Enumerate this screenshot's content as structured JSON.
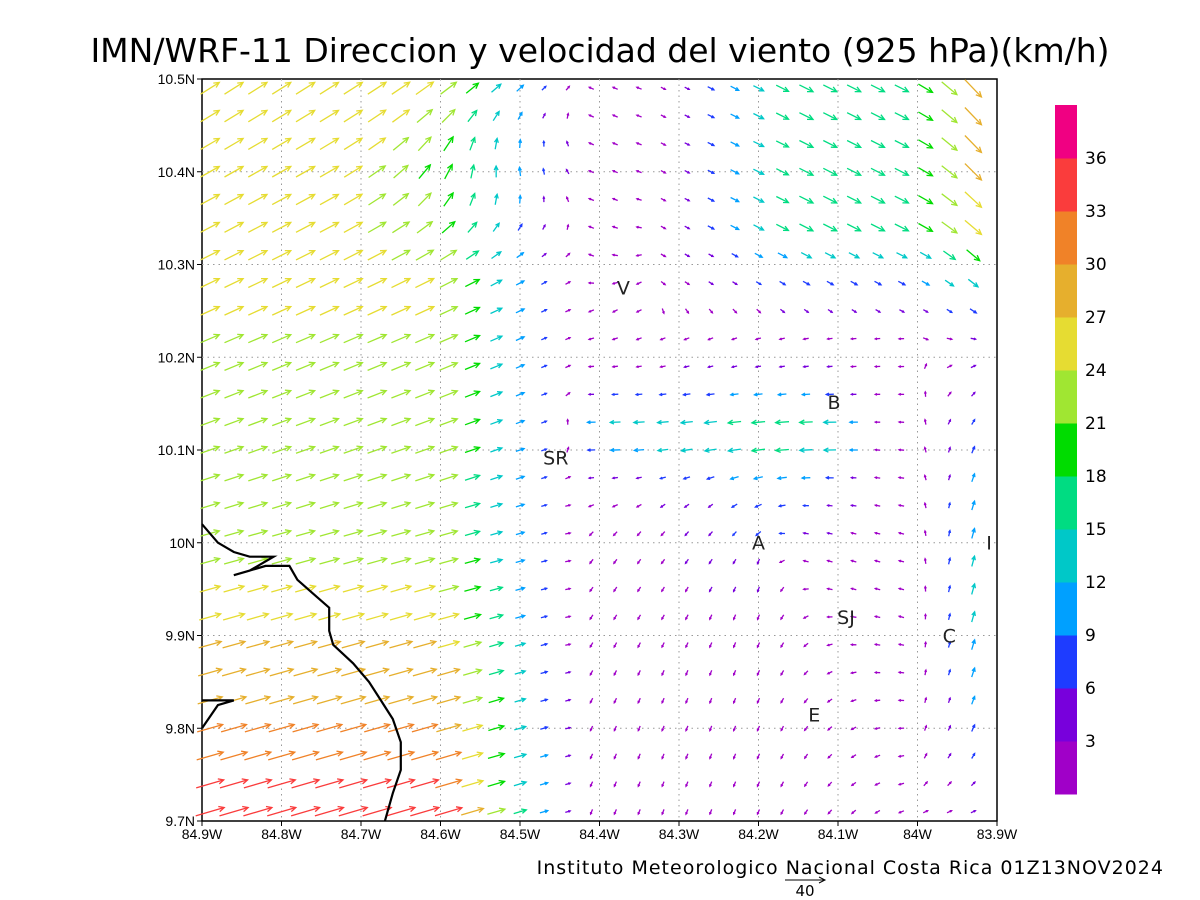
{
  "title": "IMN/WRF-11 Direccion y velocidad del viento (925 hPa)(km/h)",
  "footer": "Instituto Meteorologico Nacional Costa Rica 01Z13NOV2024",
  "reference_vector": {
    "value": "40"
  },
  "map": {
    "lon_labels": [
      "84.9W",
      "84.8W",
      "84.7W",
      "84.6W",
      "84.5W",
      "84.4W",
      "84.3W",
      "84.2W",
      "84.1W",
      "84W",
      "83.9W"
    ],
    "lat_labels": [
      "10.5N",
      "10.4N",
      "10.3N",
      "10.2N",
      "10.1N",
      "10N",
      "9.9N",
      "9.8N",
      "9.7N"
    ],
    "lon_range": [
      -84.9,
      -83.9
    ],
    "lat_range": [
      9.7,
      10.5
    ],
    "coastline": [
      [
        -84.9,
        10.02
      ],
      [
        -84.88,
        10.0
      ],
      [
        -84.86,
        9.99
      ],
      [
        -84.84,
        9.985
      ],
      [
        -84.81,
        9.985
      ],
      [
        -84.84,
        9.97
      ],
      [
        -84.86,
        9.965
      ],
      [
        -84.82,
        9.975
      ],
      [
        -84.79,
        9.975
      ],
      [
        -84.78,
        9.96
      ],
      [
        -84.76,
        9.945
      ],
      [
        -84.74,
        9.93
      ],
      [
        -84.74,
        9.905
      ],
      [
        -84.735,
        9.89
      ],
      [
        -84.71,
        9.87
      ],
      [
        -84.69,
        9.85
      ],
      [
        -84.675,
        9.83
      ],
      [
        -84.66,
        9.81
      ],
      [
        -84.65,
        9.785
      ],
      [
        -84.65,
        9.755
      ],
      [
        -84.66,
        9.73
      ],
      [
        -84.67,
        9.7
      ]
    ],
    "coastline_islet": [
      [
        -84.9,
        9.8
      ],
      [
        -84.88,
        9.825
      ],
      [
        -84.86,
        9.83
      ],
      [
        -84.88,
        9.83
      ],
      [
        -84.9,
        9.83
      ]
    ],
    "places": [
      {
        "label": "V",
        "lon": -84.37,
        "lat": 10.275
      },
      {
        "label": "B",
        "lon": -84.105,
        "lat": 10.152
      },
      {
        "label": "SR",
        "lon": -84.455,
        "lat": 10.092
      },
      {
        "label": "A",
        "lon": -84.2,
        "lat": 10.0
      },
      {
        "label": "I",
        "lon": -83.91,
        "lat": 10.0
      },
      {
        "label": "SJ",
        "lon": -84.09,
        "lat": 9.92
      },
      {
        "label": "C",
        "lon": -83.96,
        "lat": 9.9
      },
      {
        "label": "E",
        "lon": -84.13,
        "lat": 9.815
      }
    ]
  },
  "colorbar": {
    "labels": [
      "3",
      "6",
      "9",
      "12",
      "15",
      "18",
      "21",
      "24",
      "27",
      "30",
      "33",
      "36"
    ],
    "colors": [
      "#a000c8",
      "#7800dc",
      "#1e3cff",
      "#00a0ff",
      "#00c8c8",
      "#00dc82",
      "#00dc00",
      "#a0e632",
      "#e6dc32",
      "#e6af2d",
      "#f08228",
      "#fa3c3c",
      "#f00082"
    ],
    "min": 0,
    "max": 39,
    "step": 3
  },
  "wind_field": {
    "units": "km/h",
    "grid_lon_spacing": 0.03,
    "grid_lat_spacing": 0.03
  }
}
